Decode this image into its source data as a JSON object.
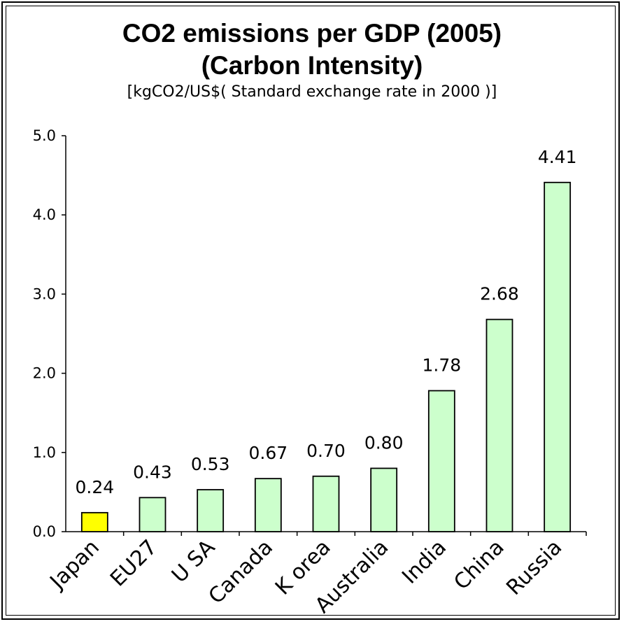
{
  "chart_data": {
    "type": "bar",
    "title": "CO2 emissions per GDP (2005)",
    "subtitle": "(Carbon Intensity)",
    "unit_label": "[kgCO2/US$( Standard exchange rate in 2000 )]",
    "categories": [
      "Japan",
      "EU27",
      "U SA",
      "Canada",
      "K orea",
      "Australia",
      "India",
      "China",
      "Russia"
    ],
    "values": [
      0.24,
      0.43,
      0.53,
      0.67,
      0.7,
      0.8,
      1.78,
      2.68,
      4.41
    ],
    "value_labels": [
      "0.24",
      "0.43",
      "0.53",
      "0.67",
      "0.70",
      "0.80",
      "1.78",
      "2.68",
      "4.41"
    ],
    "highlight_category": "Japan",
    "ylim": [
      0,
      5
    ],
    "yticks": [
      "0.0",
      "1.0",
      "2.0",
      "3.0",
      "4.0",
      "5.0"
    ],
    "xlabel": "",
    "ylabel": "",
    "grid": false,
    "colors": {
      "default_bar": "#ccffcc",
      "highlight_bar": "#ffff00",
      "bar_stroke": "#000000"
    }
  }
}
